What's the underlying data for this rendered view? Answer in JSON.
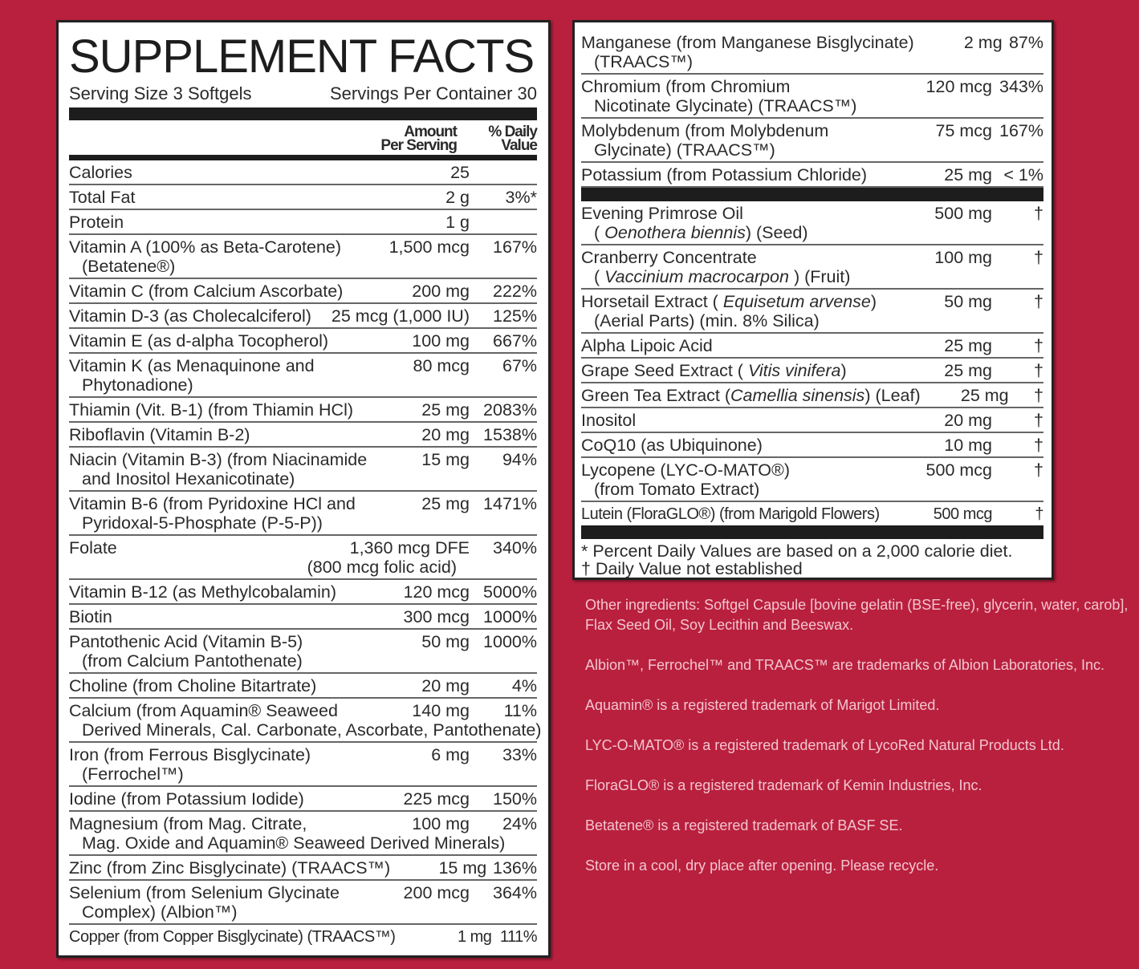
{
  "left": {
    "title": "SUPPLEMENT FACTS",
    "serving_size": "Serving Size 3 Softgels",
    "servings_per_container": "Servings Per Container 30",
    "col_amount": "Amount\nPer Serving",
    "col_dv": "% Daily\nValue",
    "rows": [
      {
        "name": "Calories",
        "amount": "25",
        "dv": ""
      },
      {
        "name": "Total Fat",
        "amount": "2 g",
        "dv": "3%*"
      },
      {
        "name": "Protein",
        "amount": "1 g",
        "dv": ""
      },
      {
        "name": "Vitamin A (100% as Beta-Carotene)",
        "sub": "(Betatene®)",
        "amount": "1,500 mcg",
        "dv": "167%"
      },
      {
        "name": "Vitamin C (from Calcium Ascorbate)",
        "amount": "200 mg",
        "dv": "222%"
      },
      {
        "name": "Vitamin D-3 (as Cholecalciferol)",
        "amount": "25 mcg (1,000 IU)",
        "dv": "125%"
      },
      {
        "name": "Vitamin E (as d-alpha Tocopherol)",
        "amount": "100 mg",
        "dv": "667%"
      },
      {
        "name": "Vitamin K (as Menaquinone and",
        "sub": "Phytonadione)",
        "amount": "80 mcg",
        "dv": "67%"
      },
      {
        "name": "Thiamin (Vit. B-1) (from Thiamin HCl)",
        "amount": "25 mg",
        "dv": "2083%"
      },
      {
        "name": "Riboflavin (Vitamin B-2)",
        "amount": "20 mg",
        "dv": "1538%"
      },
      {
        "name": "Niacin (Vitamin B-3) (from Niacinamide",
        "sub": "and Inositol Hexanicotinate)",
        "amount": "15 mg",
        "dv": "94%"
      },
      {
        "name": "Vitamin B-6 (from Pyridoxine HCl and",
        "sub": "Pyridoxal-5-Phosphate (P-5-P))",
        "amount": "25 mg",
        "dv": "1471%"
      },
      {
        "name": "Folate",
        "amount": "1,360 mcg DFE",
        "amount_sub": "(800 mcg folic acid)",
        "dv": "340%"
      },
      {
        "name": "Vitamin B-12 (as Methylcobalamin)",
        "amount": "120 mcg",
        "dv": "5000%"
      },
      {
        "name": "Biotin",
        "amount": "300 mcg",
        "dv": "1000%"
      },
      {
        "name": "Pantothenic Acid (Vitamin B-5)",
        "sub": "(from Calcium Pantothenate)",
        "amount": "50 mg",
        "dv": "1000%"
      },
      {
        "name": "Choline (from Choline Bitartrate)",
        "amount": "20 mg",
        "dv": "4%"
      },
      {
        "name": "Calcium (from Aquamin® Seaweed",
        "sub": "Derived Minerals, Cal. Carbonate, Ascorbate, Pantothenate)",
        "amount": "140 mg",
        "dv": "11%"
      },
      {
        "name": "Iron (from Ferrous Bisglycinate)",
        "sub": "(Ferrochel™)",
        "amount": "6 mg",
        "dv": "33%"
      },
      {
        "name": "Iodine (from Potassium Iodide)",
        "amount": "225 mcg",
        "dv": "150%"
      },
      {
        "name": "Magnesium (from Mag. Citrate,",
        "sub": "Mag. Oxide and Aquamin® Seaweed Derived Minerals)",
        "amount": "100 mg",
        "dv": "24%"
      },
      {
        "name": "Zinc (from Zinc Bisglycinate) (TRAACS™)",
        "amount": "15 mg",
        "dv": "136%"
      },
      {
        "name": "Selenium (from Selenium Glycinate",
        "sub": "Complex) (Albion™)",
        "amount": "200 mcg",
        "dv": "364%"
      },
      {
        "name": "Copper (from Copper Bisglycinate) (TRAACS™)",
        "amount": "1 mg",
        "dv": "111%"
      }
    ]
  },
  "right": {
    "rows_a": [
      {
        "name": "Manganese (from Manganese Bisglycinate)",
        "sub": "(TRAACS™)",
        "amount": "2 mg",
        "dv": "87%"
      },
      {
        "name": "Chromium (from Chromium",
        "sub": "Nicotinate Glycinate) (TRAACS™)",
        "amount": "120 mcg",
        "dv": "343%"
      },
      {
        "name": "Molybdenum (from Molybdenum",
        "sub": "Glycinate) (TRAACS™)",
        "amount": "75 mcg",
        "dv": "167%"
      },
      {
        "name": "Potassium (from Potassium Chloride)",
        "amount": "25 mg",
        "dv": "< 1%"
      }
    ],
    "rows_b": [
      {
        "name": "Evening Primrose Oil",
        "sub_pre": "( ",
        "sub_italic": "Oenothera biennis",
        "sub_post": ") (Seed)",
        "amount": "500 mg",
        "dv": "†"
      },
      {
        "name": "Cranberry Concentrate",
        "sub_pre": "( ",
        "sub_italic": "Vaccinium macrocarpon",
        "sub_post": " ) (Fruit)",
        "amount": "100 mg",
        "dv": "†"
      },
      {
        "name": "Horsetail Extract ( ",
        "name_italic": "Equisetum arvense",
        "name_post": ")",
        "sub": "(Aerial Parts) (min. 8% Silica)",
        "amount": "50 mg",
        "dv": "†"
      },
      {
        "name": "Alpha Lipoic Acid",
        "amount": "25 mg",
        "dv": "†"
      },
      {
        "name": "Grape Seed Extract ( ",
        "name_italic": "Vitis vinifera",
        "name_post": ")",
        "amount": "25 mg",
        "dv": "†"
      },
      {
        "name": "Green Tea Extract (",
        "name_italic": "Camellia sinensis",
        "name_post": ") (Leaf)",
        "amount": "25 mg",
        "dv": "†"
      },
      {
        "name": "Inositol",
        "amount": "20 mg",
        "dv": "†"
      },
      {
        "name": "CoQ10 (as Ubiquinone)",
        "amount": "10 mg",
        "dv": "†"
      },
      {
        "name": "Lycopene (LYC-O-MATO®)",
        "sub": "(from Tomato Extract)",
        "amount": "500 mcg",
        "dv": "†"
      },
      {
        "name": "Lutein (FloraGLO®) (from Marigold Flowers)",
        "amount": "500 mcg",
        "dv": "†"
      }
    ],
    "footnote_1": "* Percent Daily Values are based on a 2,000 calorie diet.",
    "footnote_2": "† Daily Value not established"
  },
  "notes": [
    "Other ingredients: Softgel Capsule [bovine gelatin (BSE-free), glycerin, water, carob], Flax Seed Oil, Soy Lecithin and Beeswax.",
    "Albion™, Ferrochel™ and TRAACS™ are trademarks of Albion Laboratories, Inc.",
    "Aquamin® is a registered trademark of Marigot Limited.",
    "LYC-O-MATO® is a registered trademark of LycoRed Natural Products Ltd.",
    "FloraGLO® is a registered trademark of Kemin Industries, Inc.",
    "Betatene® is a registered trademark of BASF SE.",
    "Store in a cool, dry place after opening. Please recycle."
  ],
  "colors": {
    "background": "#b9203e",
    "panel": "#ffffff",
    "notes_text": "#f3c5cf",
    "rule": "#1d1d1d"
  }
}
